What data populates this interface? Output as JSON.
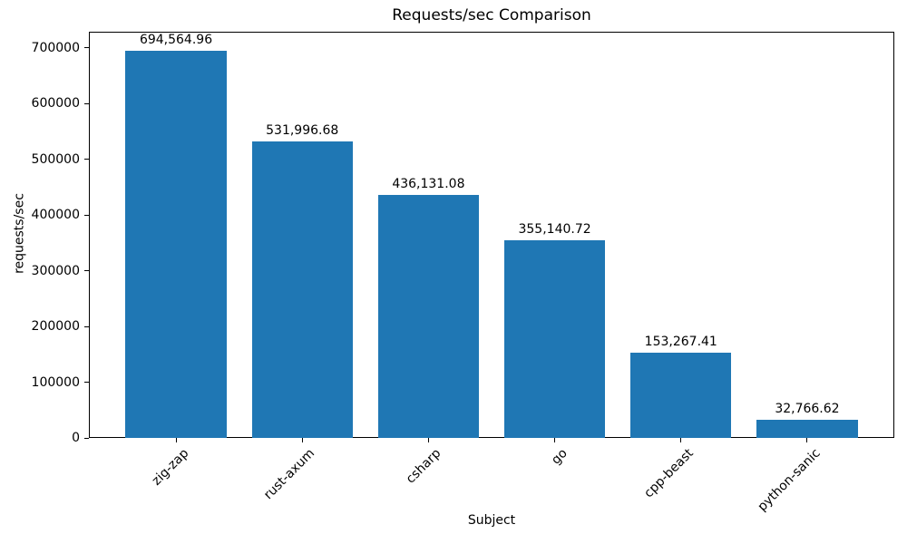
{
  "chart_data": {
    "type": "bar",
    "title": "Requests/sec Comparison",
    "xlabel": "Subject",
    "ylabel": "requests/sec",
    "categories": [
      "zig-zap",
      "rust-axum",
      "csharp",
      "go",
      "cpp-beast",
      "python-sanic"
    ],
    "values": [
      694564.96,
      531996.68,
      436131.08,
      355140.72,
      153267.41,
      32766.62
    ],
    "bar_labels": [
      "694,564.96",
      "531,996.68",
      "436,131.08",
      "355,140.72",
      "153,267.41",
      "32,766.62"
    ],
    "yticks": [
      0,
      100000,
      200000,
      300000,
      400000,
      500000,
      600000,
      700000
    ],
    "ylim": [
      0,
      729293
    ],
    "xlim": [
      -0.69,
      5.69
    ],
    "bar_width_units": 0.8,
    "bar_color": "#1f77b4",
    "text_color": "#000000",
    "spine_color": "#000000",
    "grid": false,
    "legend": "none",
    "x_tick_rotation_deg": 45
  }
}
